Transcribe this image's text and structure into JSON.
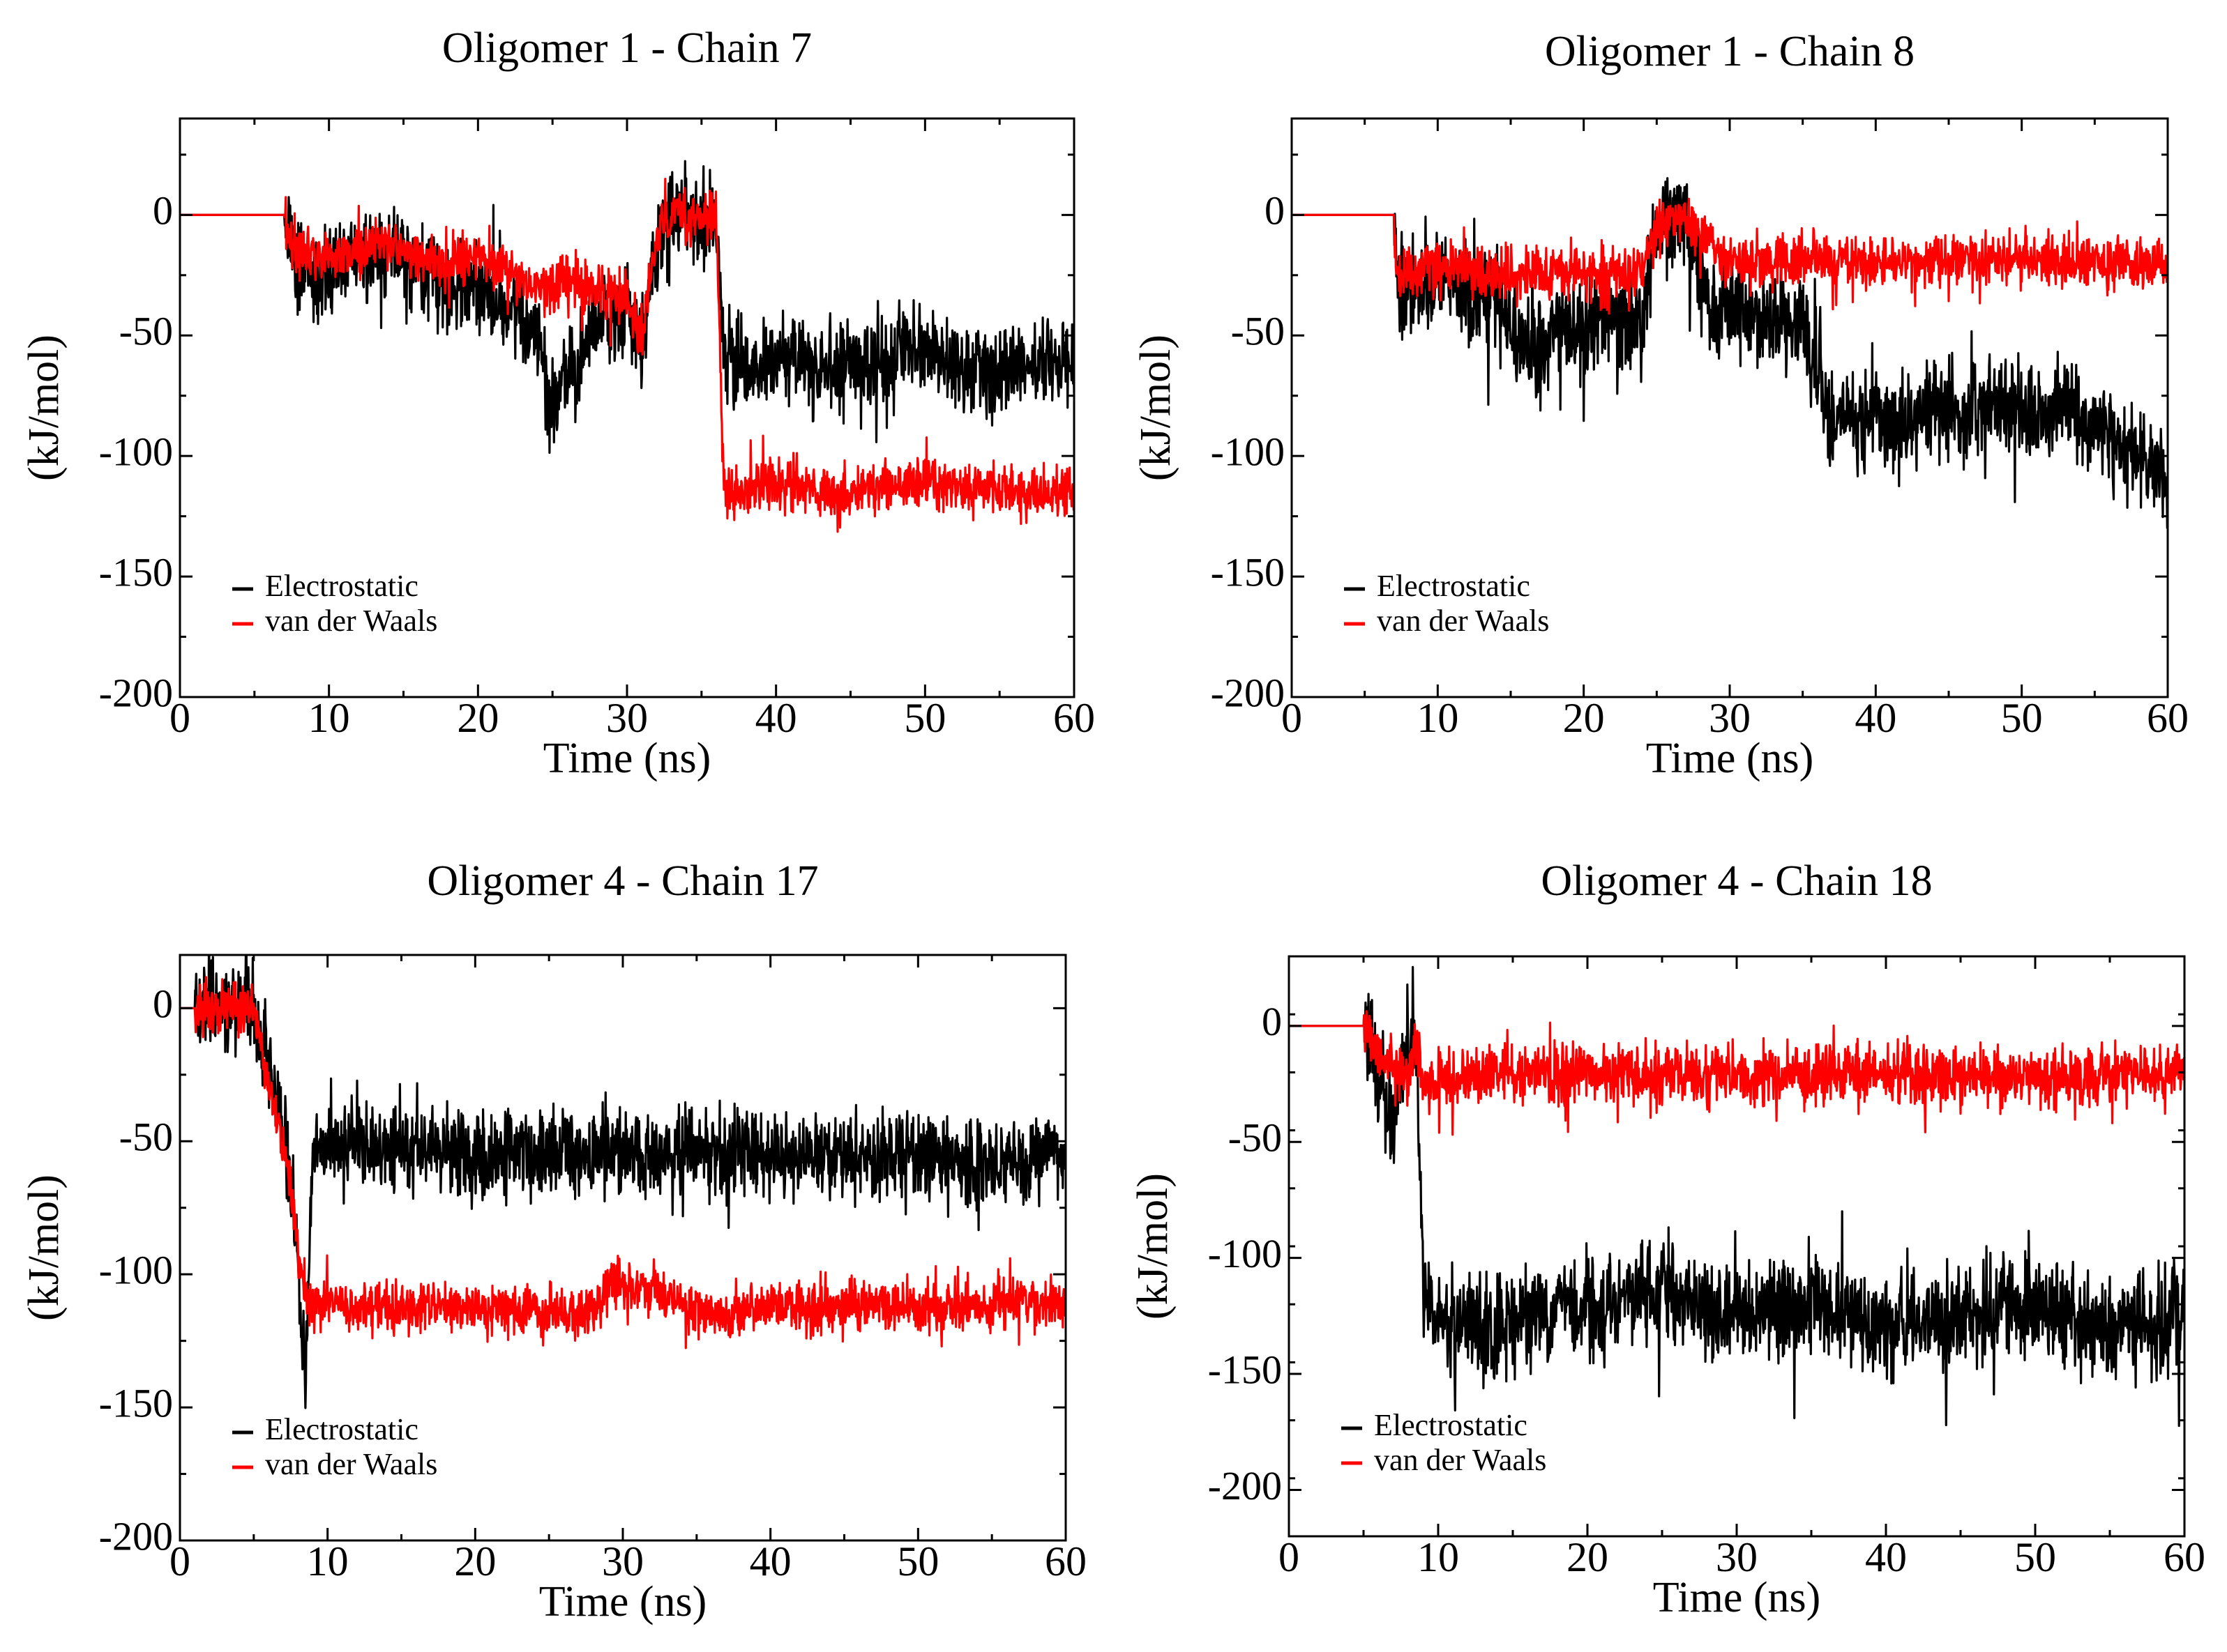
{
  "figure": {
    "panels_layout": "2x2 grid"
  },
  "chart_data": [
    {
      "type": "line",
      "title": "Oligomer 1 - Chain 7",
      "xlabel": "Time (ns)",
      "ylabel": "(kJ/mol)",
      "xlim": [
        0,
        60
      ],
      "ylim": [
        -200,
        40
      ],
      "xticks": [
        0,
        10,
        20,
        30,
        40,
        50,
        60
      ],
      "yticks": [
        -200,
        -150,
        -100,
        -50,
        0
      ],
      "legend_position": "lower-left",
      "series": [
        {
          "name": "Electrostatic",
          "color": "#000000",
          "noise": 14,
          "x": [
            0,
            7,
            7.5,
            9,
            12,
            14,
            16,
            18,
            20,
            22,
            24,
            25,
            26,
            28,
            30,
            31,
            32,
            33,
            35,
            36,
            36.5,
            40,
            45,
            50,
            55,
            60
          ],
          "y": [
            0,
            0,
            -15,
            -25,
            -20,
            -12,
            -22,
            -28,
            -30,
            -38,
            -50,
            -80,
            -70,
            -45,
            -38,
            -55,
            -10,
            0,
            0,
            0,
            -60,
            -60,
            -62,
            -58,
            -65,
            -60
          ]
        },
        {
          "name": "van der Waals",
          "color": "#ff0000",
          "noise": 8,
          "x": [
            0,
            7,
            7.5,
            10,
            12,
            14,
            16,
            18,
            20,
            22,
            24,
            26,
            28,
            30,
            31,
            32,
            33,
            35,
            36,
            36.5,
            40,
            45,
            50,
            55,
            60
          ],
          "y": [
            0,
            0,
            -15,
            -18,
            -15,
            -10,
            -18,
            -20,
            -18,
            -22,
            -30,
            -28,
            -30,
            -35,
            -50,
            -10,
            0,
            0,
            0,
            -115,
            -112,
            -115,
            -110,
            -115,
            -115
          ]
        }
      ]
    },
    {
      "type": "line",
      "title": "Oligomer 1 - Chain 8",
      "xlabel": "Time (ns)",
      "ylabel": "(kJ/mol)",
      "xlim": [
        0,
        60
      ],
      "ylim": [
        -200,
        40
      ],
      "xticks": [
        0,
        10,
        20,
        30,
        40,
        50,
        60
      ],
      "yticks": [
        -200,
        -150,
        -100,
        -50,
        0
      ],
      "legend_position": "lower-left",
      "series": [
        {
          "name": "Electrostatic",
          "color": "#000000",
          "noise": 15,
          "x": [
            0,
            7,
            7.2,
            10,
            14,
            16,
            18,
            20,
            22,
            24,
            25,
            27,
            28,
            29,
            32,
            35,
            37,
            40,
            45,
            50,
            55,
            58,
            60
          ],
          "y": [
            0,
            0,
            -30,
            -25,
            -35,
            -55,
            -50,
            -45,
            -40,
            -45,
            -5,
            0,
            -25,
            -40,
            -40,
            -45,
            -85,
            -85,
            -80,
            -80,
            -85,
            -100,
            -105
          ]
        },
        {
          "name": "van der Waals",
          "color": "#ff0000",
          "noise": 8,
          "x": [
            0,
            7,
            7.2,
            10,
            14,
            20,
            24,
            25,
            27,
            28,
            30,
            35,
            40,
            45,
            50,
            55,
            60
          ],
          "y": [
            0,
            0,
            -25,
            -20,
            -25,
            -22,
            -25,
            -5,
            0,
            -10,
            -20,
            -18,
            -20,
            -20,
            -18,
            -20,
            -20
          ]
        }
      ]
    },
    {
      "type": "line",
      "title": "Oligomer 4 - Chain 17",
      "xlabel": "Time (ns)",
      "ylabel": "(kJ/mol)",
      "xlim": [
        0,
        60
      ],
      "ylim": [
        -200,
        20
      ],
      "xticks": [
        0,
        10,
        20,
        30,
        40,
        50,
        60
      ],
      "yticks": [
        -200,
        -150,
        -100,
        -50,
        0
      ],
      "legend_position": "lower-left",
      "series": [
        {
          "name": "Electrostatic",
          "color": "#000000",
          "noise": 12,
          "x": [
            0,
            1,
            5,
            6,
            7,
            8,
            8.5,
            9,
            12,
            20,
            30,
            40,
            50,
            55,
            60
          ],
          "y": [
            0,
            0,
            0,
            -20,
            -45,
            -100,
            -140,
            -55,
            -50,
            -55,
            -55,
            -55,
            -55,
            -60,
            -55
          ]
        },
        {
          "name": "van der Waals",
          "color": "#ff0000",
          "noise": 7,
          "x": [
            0,
            1,
            5,
            6,
            7,
            8,
            8.5,
            9,
            12,
            20,
            28,
            29,
            32,
            36,
            40,
            50,
            60
          ],
          "y": [
            0,
            0,
            0,
            -30,
            -50,
            -90,
            -110,
            -110,
            -112,
            -112,
            -115,
            -105,
            -105,
            -115,
            -112,
            -112,
            -110
          ]
        }
      ]
    },
    {
      "type": "line",
      "title": "Oligomer 4 - Chain 18",
      "xlabel": "Time (ns)",
      "ylabel": "(kJ/mol)",
      "xlim": [
        0,
        60
      ],
      "ylim": [
        -220,
        30
      ],
      "xticks": [
        0,
        10,
        20,
        30,
        40,
        50,
        60
      ],
      "yticks": [
        -200,
        -150,
        -100,
        -50,
        0
      ],
      "legend_position": "lower-left",
      "series": [
        {
          "name": "Electrostatic",
          "color": "#000000",
          "noise": 16,
          "x": [
            0,
            5,
            6,
            7,
            8,
            8.5,
            9,
            10,
            15,
            20,
            25,
            30,
            35,
            40,
            45,
            50,
            55,
            60
          ],
          "y": [
            0,
            0,
            -20,
            -40,
            -5,
            0,
            -110,
            -125,
            -130,
            -120,
            -115,
            -125,
            -120,
            -130,
            -125,
            -120,
            -130,
            -125
          ]
        },
        {
          "name": "van der Waals",
          "color": "#ff0000",
          "noise": 9,
          "x": [
            0,
            5,
            6,
            8,
            8.5,
            9,
            10,
            20,
            30,
            40,
            50,
            60
          ],
          "y": [
            0,
            0,
            -10,
            -25,
            -5,
            -25,
            -22,
            -20,
            -22,
            -20,
            -22,
            -20
          ]
        }
      ]
    }
  ]
}
